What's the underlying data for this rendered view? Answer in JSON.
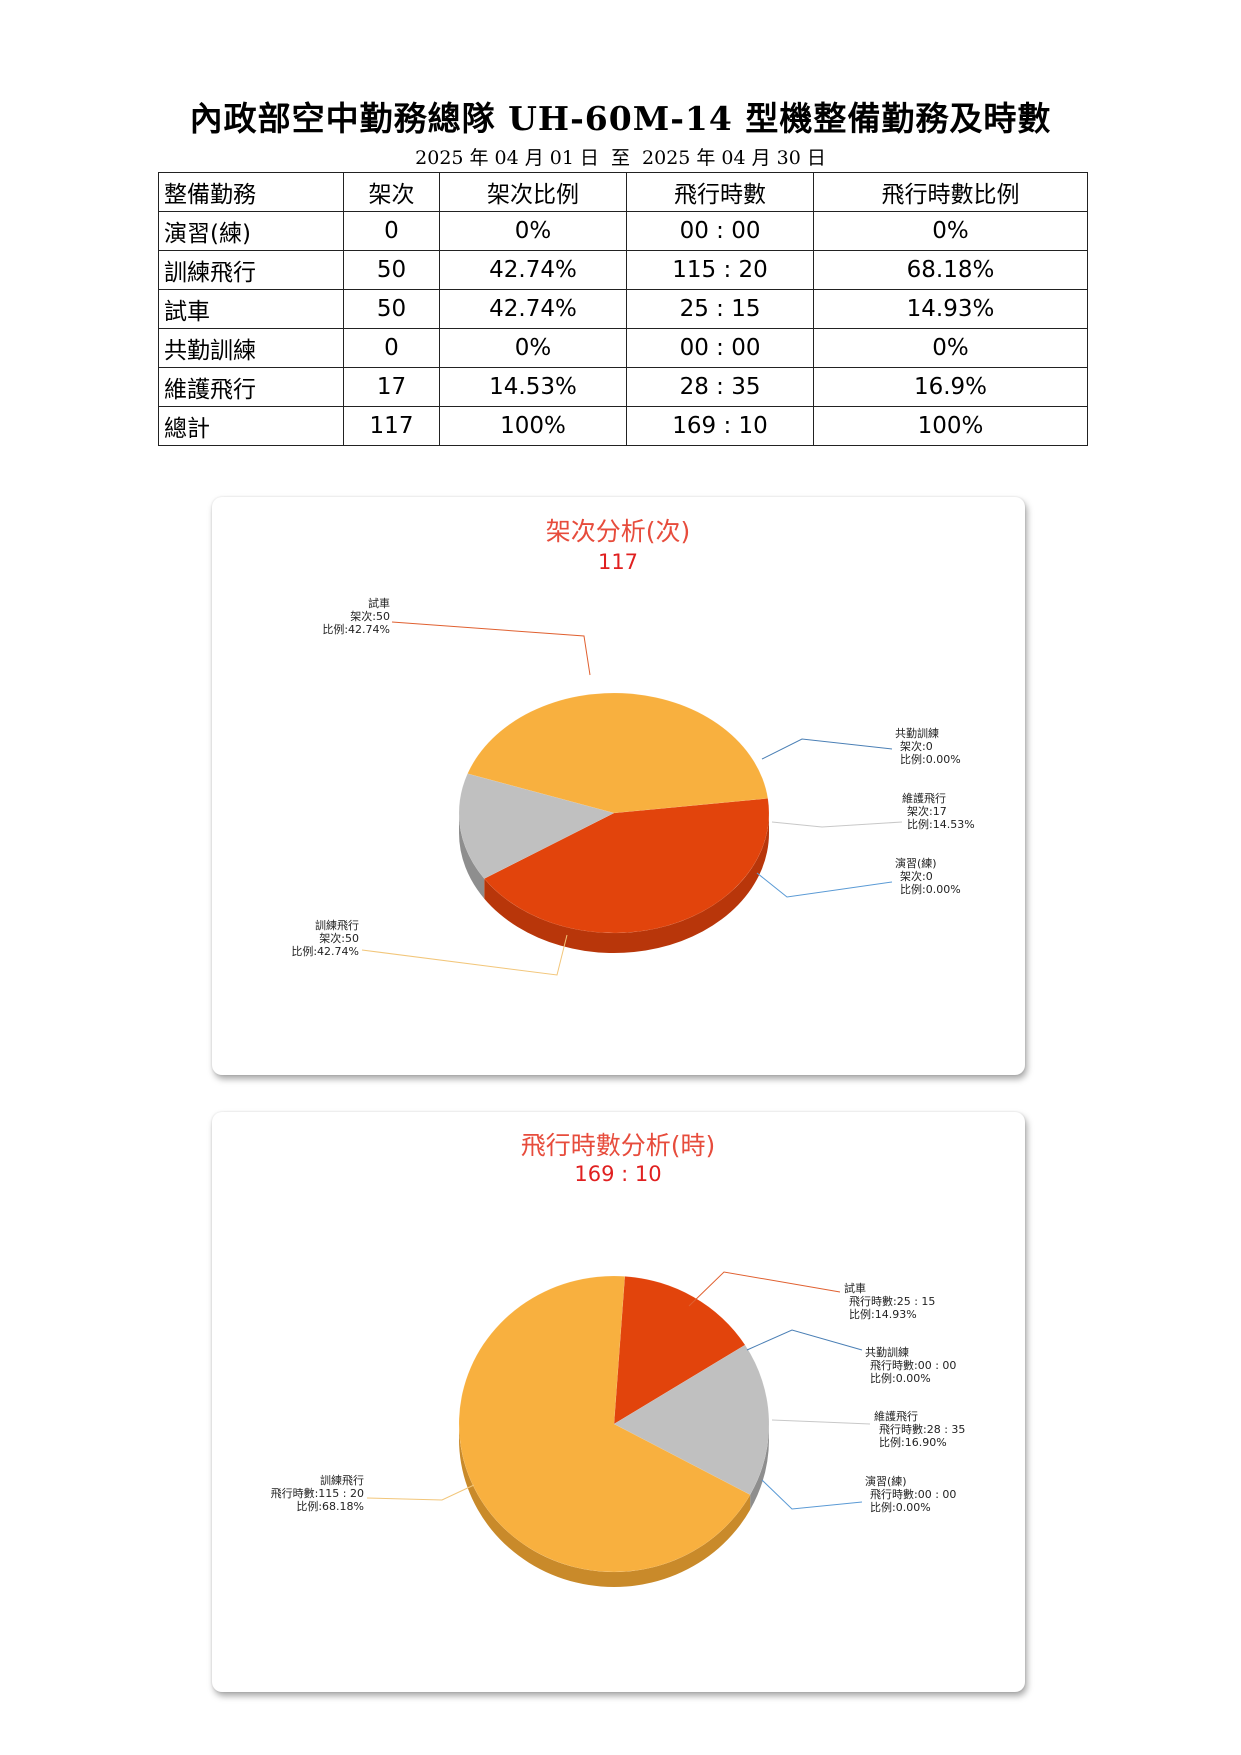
{
  "title": "內政部空中勤務總隊 UH-60M-14 型機整備勤務及時數",
  "period": {
    "start_y": "2025",
    "start_m": "04",
    "start_d": "01",
    "to": "至",
    "end_y": "2025",
    "end_m": "04",
    "end_d": "30",
    "year_char": "年",
    "month_char": "月",
    "day_char": "日"
  },
  "table": {
    "headers": [
      "整備勤務",
      "架次",
      "架次比例",
      "飛行時數",
      "飛行時數比例"
    ],
    "rows": [
      [
        "演習(練)",
        "0",
        "0%",
        "00 : 00",
        "0%"
      ],
      [
        "訓練飛行",
        "50",
        "42.74%",
        "115 : 20",
        "68.18%"
      ],
      [
        "試車",
        "50",
        "42.74%",
        "25 : 15",
        "14.93%"
      ],
      [
        "共勤訓練",
        "0",
        "0%",
        "00 : 00",
        "0%"
      ],
      [
        "維護飛行",
        "17",
        "14.53%",
        "28 : 35",
        "16.9%"
      ],
      [
        "總計",
        "117",
        "100%",
        "169 : 10",
        "100%"
      ]
    ]
  },
  "colors": {
    "試車": "#e2440c",
    "訓練飛行": "#f8b03f",
    "維護飛行": "#c0c0c0",
    "title": "#e74c3c"
  },
  "chart_data": [
    {
      "type": "pie",
      "title": "架次分析(次)",
      "total": "117",
      "slices": [
        {
          "name": "試車",
          "value": 50,
          "percent": 42.74,
          "lines": [
            "試車",
            "架次:50",
            "比例:42.74%"
          ]
        },
        {
          "name": "共勤訓練",
          "value": 0,
          "percent": 0,
          "lines": [
            "共勤訓練",
            "架次:0",
            "比例:0.00%"
          ]
        },
        {
          "name": "維護飛行",
          "value": 17,
          "percent": 14.53,
          "lines": [
            "維護飛行",
            "架次:17",
            "比例:14.53%"
          ]
        },
        {
          "name": "演習(練)",
          "value": 0,
          "percent": 0,
          "lines": [
            "演習(練)",
            "架次:0",
            "比例:0.00%"
          ]
        },
        {
          "name": "訓練飛行",
          "value": 50,
          "percent": 42.74,
          "lines": [
            "訓練飛行",
            "架次:50",
            "比例:42.74%"
          ]
        }
      ]
    },
    {
      "type": "pie",
      "title": "飛行時數分析(時)",
      "total": "169 : 10",
      "slices": [
        {
          "name": "試車",
          "value": 25.25,
          "percent": 14.93,
          "lines": [
            "試車",
            "飛行時數:25 : 15",
            "比例:14.93%"
          ]
        },
        {
          "name": "共勤訓練",
          "value": 0,
          "percent": 0,
          "lines": [
            "共勤訓練",
            "飛行時數:00 : 00",
            "比例:0.00%"
          ]
        },
        {
          "name": "維護飛行",
          "value": 28.5833,
          "percent": 16.9,
          "lines": [
            "維護飛行",
            "飛行時數:28 : 35",
            "比例:16.90%"
          ]
        },
        {
          "name": "演習(練)",
          "value": 0,
          "percent": 0,
          "lines": [
            "演習(練)",
            "飛行時數:00 : 00",
            "比例:0.00%"
          ]
        },
        {
          "name": "訓練飛行",
          "value": 115.3333,
          "percent": 68.18,
          "lines": [
            "訓練飛行",
            "飛行時數:115 : 20",
            "比例:68.18%"
          ]
        }
      ]
    }
  ]
}
